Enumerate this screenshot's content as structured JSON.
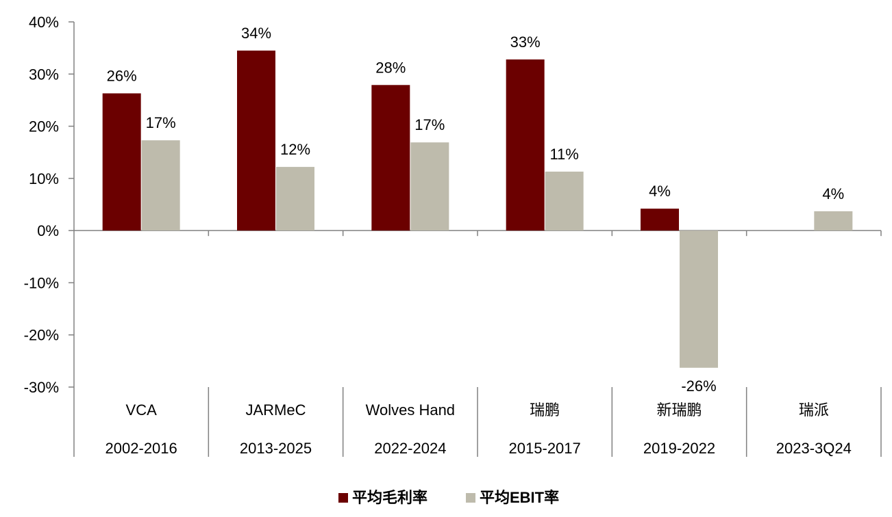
{
  "chart_data": {
    "type": "bar",
    "title": "",
    "xlabel": "",
    "ylabel": "",
    "ylim": [
      -30,
      40
    ],
    "yticks": [
      40,
      30,
      20,
      10,
      0,
      -10,
      -20,
      -30
    ],
    "ytick_labels": [
      "40%",
      "30%",
      "20%",
      "10%",
      "0%",
      "-10%",
      "-20%",
      "-30%"
    ],
    "grid": false,
    "legend_position": "bottom-center",
    "categories": [
      "VCA",
      "JARMeC",
      "Wolves Hand",
      "瑞鹏",
      "新瑞鹏",
      "瑞派"
    ],
    "periods": [
      "2002-2016",
      "2013-2025",
      "2022-2024",
      "2015-2017",
      "2019-2022",
      "2023-3Q24"
    ],
    "series": [
      {
        "name": "平均毛利率",
        "color": "#6b0000",
        "values": [
          26.3,
          34.5,
          27.9,
          32.8,
          4.2,
          null
        ],
        "labels": [
          "26%",
          "34%",
          "28%",
          "33%",
          "4%",
          ""
        ]
      },
      {
        "name": "平均EBIT率",
        "color": "#bebbac",
        "values": [
          17.3,
          12.2,
          16.9,
          11.3,
          -26.3,
          3.7
        ],
        "labels": [
          "17%",
          "12%",
          "17%",
          "11%",
          "-26%",
          "4%"
        ]
      }
    ]
  }
}
